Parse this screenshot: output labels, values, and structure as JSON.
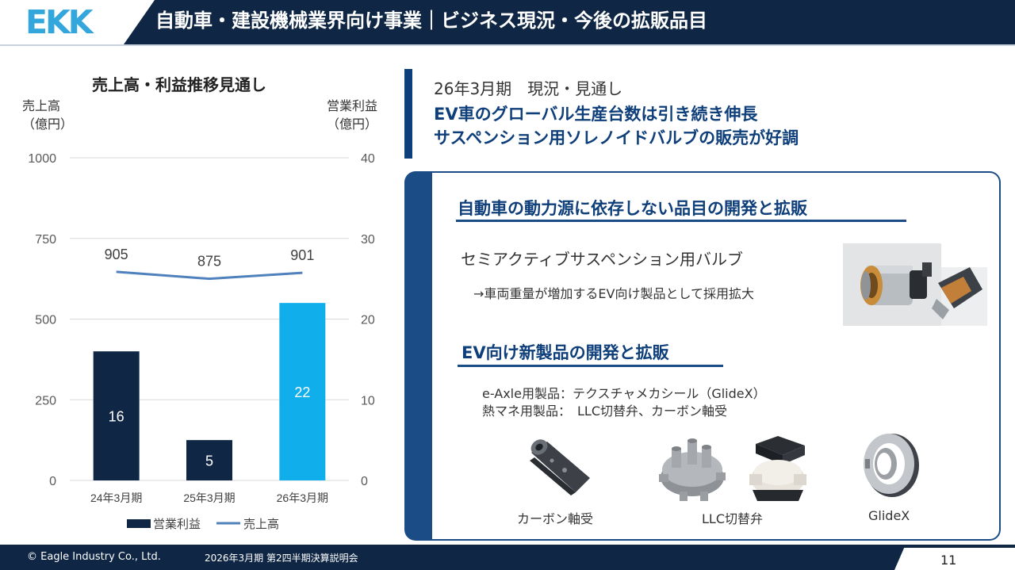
{
  "header": {
    "logo": "EKK",
    "title": "自動車・建設機械業界向け事業｜ビジネス現況・今後の拡販品目"
  },
  "chart": {
    "title": "売上高・利益推移見通し",
    "left_axis_label_line1": "売上高",
    "left_axis_label_line2": "（億円）",
    "right_axis_label_line1": "営業利益",
    "right_axis_label_line2": "（億円）"
  },
  "chart_data": {
    "type": "bar",
    "title": "売上高・利益推移見通し",
    "categories": [
      "24年3月期",
      "25年3月期",
      "26年3月期"
    ],
    "series": [
      {
        "name": "営業利益",
        "type": "bar",
        "axis": "right",
        "values": [
          16,
          5,
          22
        ],
        "colors": [
          "#0f2744",
          "#0f2744",
          "#10aeea"
        ]
      },
      {
        "name": "売上高",
        "type": "line",
        "axis": "left",
        "values": [
          905,
          875,
          901
        ],
        "color": "#4f81bd"
      }
    ],
    "left_axis": {
      "label": "売上高（億円）",
      "ylim": [
        0,
        1000
      ],
      "ticks": [
        0,
        250,
        500,
        750,
        1000
      ]
    },
    "right_axis": {
      "label": "営業利益（億円）",
      "ylim": [
        0,
        40
      ],
      "ticks": [
        0,
        10,
        20,
        30,
        40
      ]
    },
    "line_scale_ylim": [
      0,
      1400
    ],
    "legend": [
      "営業利益",
      "売上高"
    ],
    "legend_position": "bottom",
    "grid": true
  },
  "status": {
    "period": "26年3月期　現況・見通し",
    "line1": "EV車のグローバル生産台数は引き続き伸長",
    "line2": "サスペンション用ソレノイドバルブの販売が好調"
  },
  "panel": {
    "heading1": "自動車の動力源に依存しない品目の開発と拡販",
    "product_name": "セミアクティブサスペンション用バルブ",
    "product_note": "→車両重量が増加するEV向け製品として採用拡大",
    "heading2": "EV向け新製品の開発と拡販",
    "ev_line1": "e-Axle用製品：テクスチャメカシール（GlideX）",
    "ev_line2": "熱マネ用製品：　LLC切替弁、カーボン軸受",
    "captions": {
      "carbon": "カーボン軸受",
      "llc": "LLC切替弁",
      "glidex": "GlideX"
    }
  },
  "footer": {
    "copyright": "© Eagle Industry Co., Ltd.",
    "event": "2026年3月期 第2四半期決算説明会",
    "page": "11"
  },
  "colors": {
    "navy": "#0f2744",
    "accent_blue": "#10aeea",
    "line_blue": "#4f81bd",
    "panel_blue": "#1c4c85",
    "heading_blue": "#0f3f7a"
  }
}
